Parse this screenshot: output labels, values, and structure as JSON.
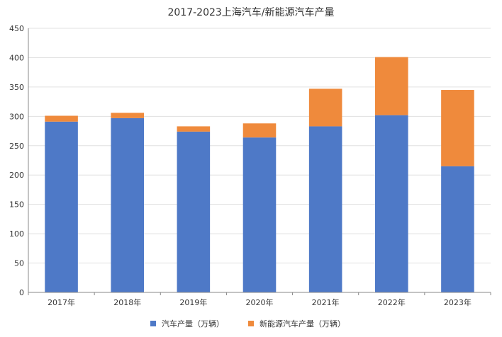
{
  "chart_data": {
    "type": "bar",
    "stacked": true,
    "title": "2017-2023上海汽车/新能源汽车产量",
    "categories": [
      "2017年",
      "2018年",
      "2019年",
      "2020年",
      "2021年",
      "2022年",
      "2023年"
    ],
    "series": [
      {
        "name": "汽车产量（万辆）",
        "color": "#4e79c7",
        "values": [
          291,
          297,
          274,
          264,
          283,
          302,
          215
        ]
      },
      {
        "name": "新能源汽车产量（万辆）",
        "color": "#ef8a3c",
        "values": [
          10,
          9,
          9,
          24,
          64,
          99,
          130
        ]
      }
    ],
    "ylim": [
      0,
      450
    ],
    "yticks": [
      0,
      50,
      100,
      150,
      200,
      250,
      300,
      350,
      400,
      450
    ],
    "grid": true,
    "legend_position": "bottom"
  }
}
